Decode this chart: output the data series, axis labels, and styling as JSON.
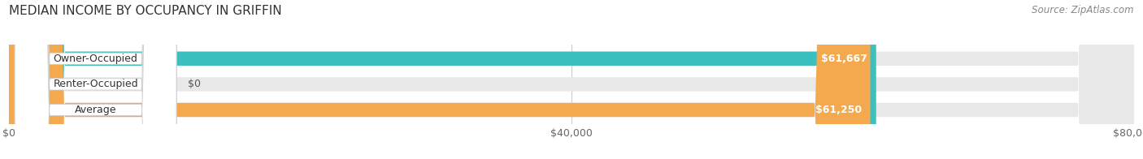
{
  "title": "MEDIAN INCOME BY OCCUPANCY IN GRIFFIN",
  "source": "Source: ZipAtlas.com",
  "categories": [
    "Owner-Occupied",
    "Renter-Occupied",
    "Average"
  ],
  "values": [
    61667,
    0,
    61250
  ],
  "labels": [
    "$61,667",
    "$0",
    "$61,250"
  ],
  "bar_colors": [
    "#3bbfbf",
    "#c9a8d4",
    "#f5a94e"
  ],
  "xlim": [
    0,
    80000
  ],
  "xticks": [
    0,
    40000,
    80000
  ],
  "xtick_labels": [
    "$0",
    "$40,000",
    "$80,000"
  ],
  "figsize": [
    14.06,
    1.96
  ],
  "dpi": 100,
  "bar_height": 0.55,
  "title_fontsize": 11,
  "source_fontsize": 8.5,
  "tick_fontsize": 9,
  "bar_label_fontsize": 9,
  "category_fontsize": 9
}
